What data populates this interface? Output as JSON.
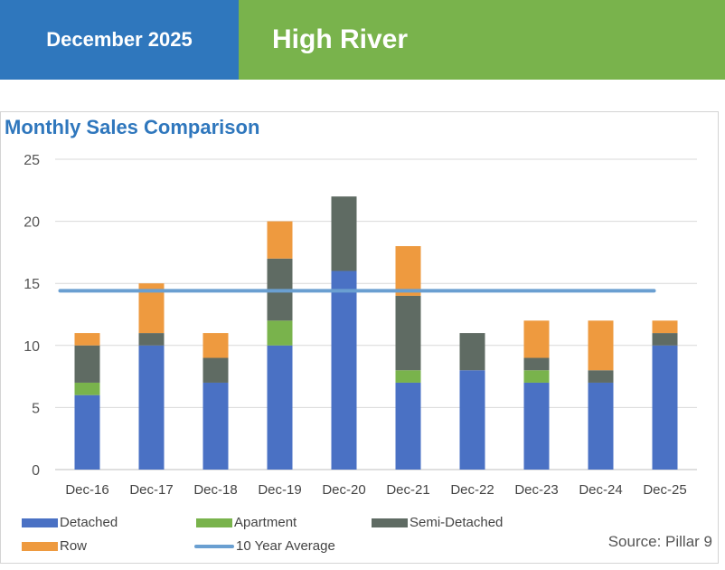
{
  "header": {
    "date": "December 2025",
    "location": "High River"
  },
  "colors": {
    "header_left": "#2f77bd",
    "header_right": "#79b34c",
    "Detached": "#4a71c4",
    "Apartment": "#79b34c",
    "Semi-Detached": "#5f6b63",
    "Row": "#ee9a3f",
    "10 Year Average": "#6a9fd1"
  },
  "chart_data": {
    "type": "bar",
    "stacked": true,
    "title": "Monthly Sales Comparison",
    "categories": [
      "Dec-16",
      "Dec-17",
      "Dec-18",
      "Dec-19",
      "Dec-20",
      "Dec-21",
      "Dec-22",
      "Dec-23",
      "Dec-24",
      "Dec-25"
    ],
    "series": [
      {
        "name": "Detached",
        "values": [
          6,
          10,
          7,
          10,
          16,
          7,
          8,
          7,
          7,
          10
        ]
      },
      {
        "name": "Apartment",
        "values": [
          1,
          0,
          0,
          2,
          0,
          1,
          0,
          1,
          0,
          0
        ]
      },
      {
        "name": "Semi-Detached",
        "values": [
          3,
          1,
          2,
          5,
          6,
          6,
          3,
          1,
          1,
          1
        ]
      },
      {
        "name": "Row",
        "values": [
          1,
          4,
          2,
          3,
          0,
          4,
          0,
          3,
          4,
          1
        ]
      }
    ],
    "average_line": {
      "name": "10 Year Average",
      "value": 14.4
    },
    "ylim": [
      0,
      25
    ],
    "yticks": [
      "0",
      "5",
      "10",
      "15",
      "20",
      "25"
    ],
    "grid": true,
    "legend_position": "bottom",
    "source": "Source: Pillar 9"
  }
}
